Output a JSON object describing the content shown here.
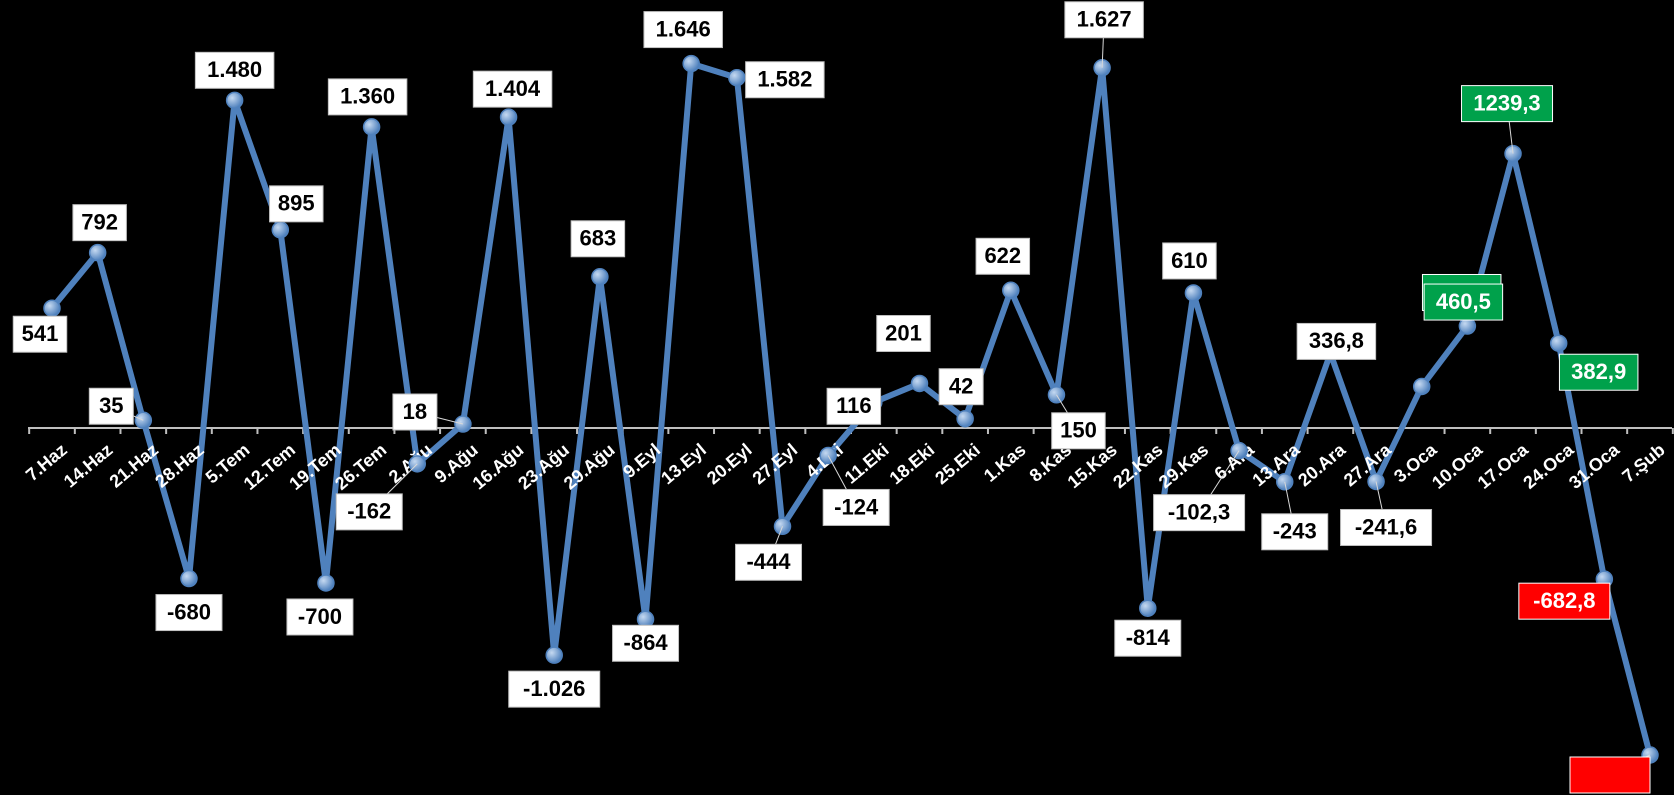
{
  "chart_data": {
    "type": "line",
    "title": "",
    "xlabel": "",
    "ylabel": "",
    "ylim": [
      -1300,
      2200
    ],
    "grid": false,
    "legend": "none",
    "colors": {
      "background": "#000000",
      "line": "#4f81bd",
      "axis": "#bfbfbf",
      "label_bg": "#ffffff",
      "label_text": "#000000",
      "positive_bg": "#00a14b",
      "negative_bg": "#ff0000",
      "highlight_text": "#ffffff"
    },
    "categories": [
      "7.Haz",
      "14.Haz",
      "21.Haz",
      "28.Haz",
      "5.Tem",
      "12.Tem",
      "19.Tem",
      "26.Tem",
      "2.Ağu",
      "9.Ağu",
      "16.Ağu",
      "23.Ağu",
      "29.Ağu",
      "9.Eyl",
      "13.Eyl",
      "20.Eyl",
      "27.Eyl",
      "4.Eki",
      "11.Eki",
      "18.Eki",
      "25.Eki",
      "1.Kas",
      "8.Kas",
      "15.Kas",
      "22.Kas",
      "29.Kas",
      "6.Ara",
      "13.Ara",
      "20.Ara",
      "27.Ara",
      "3.Oca",
      "10.Oca",
      "17.Oca",
      "24.Oca",
      "31.Oca",
      "7.Şub"
    ],
    "values": [
      541,
      792,
      35,
      -680,
      1480,
      895,
      -700,
      1360,
      -162,
      18,
      1404,
      -1026,
      683,
      -864,
      1646,
      1582,
      -444,
      -124,
      116,
      201,
      42,
      622,
      150,
      1627,
      -814,
      610,
      -102.3,
      -243,
      336.8,
      -241.6,
      187.5,
      460.5,
      1239.3,
      382.9,
      -682.8,
      null
    ],
    "data_labels": [
      "541",
      "792",
      "35",
      "-680",
      "1.480",
      "895",
      "-700",
      "1.360",
      "-162",
      "18",
      "1.404",
      "-1.026",
      "683",
      "-864",
      "1.646",
      "1.582",
      "-444",
      "-124",
      "116",
      "201",
      "42",
      "622",
      "150",
      "1.627",
      "-814",
      "610",
      "-102,3",
      "-243",
      "336,8",
      "-241,6",
      "187,5",
      "460,5",
      "1239,3",
      "382,9",
      "-682,8",
      ""
    ],
    "label_styles": [
      "plain",
      "plain",
      "plain",
      "plain",
      "plain",
      "plain",
      "plain",
      "plain",
      "plain",
      "plain",
      "plain",
      "plain",
      "plain",
      "plain",
      "plain",
      "plain",
      "plain",
      "plain",
      "plain",
      "plain",
      "plain",
      "plain",
      "plain",
      "plain",
      "plain",
      "plain",
      "plain",
      "plain",
      "plain",
      "plain",
      "positive",
      "positive",
      "positive",
      "positive",
      "negative",
      "negative"
    ]
  }
}
